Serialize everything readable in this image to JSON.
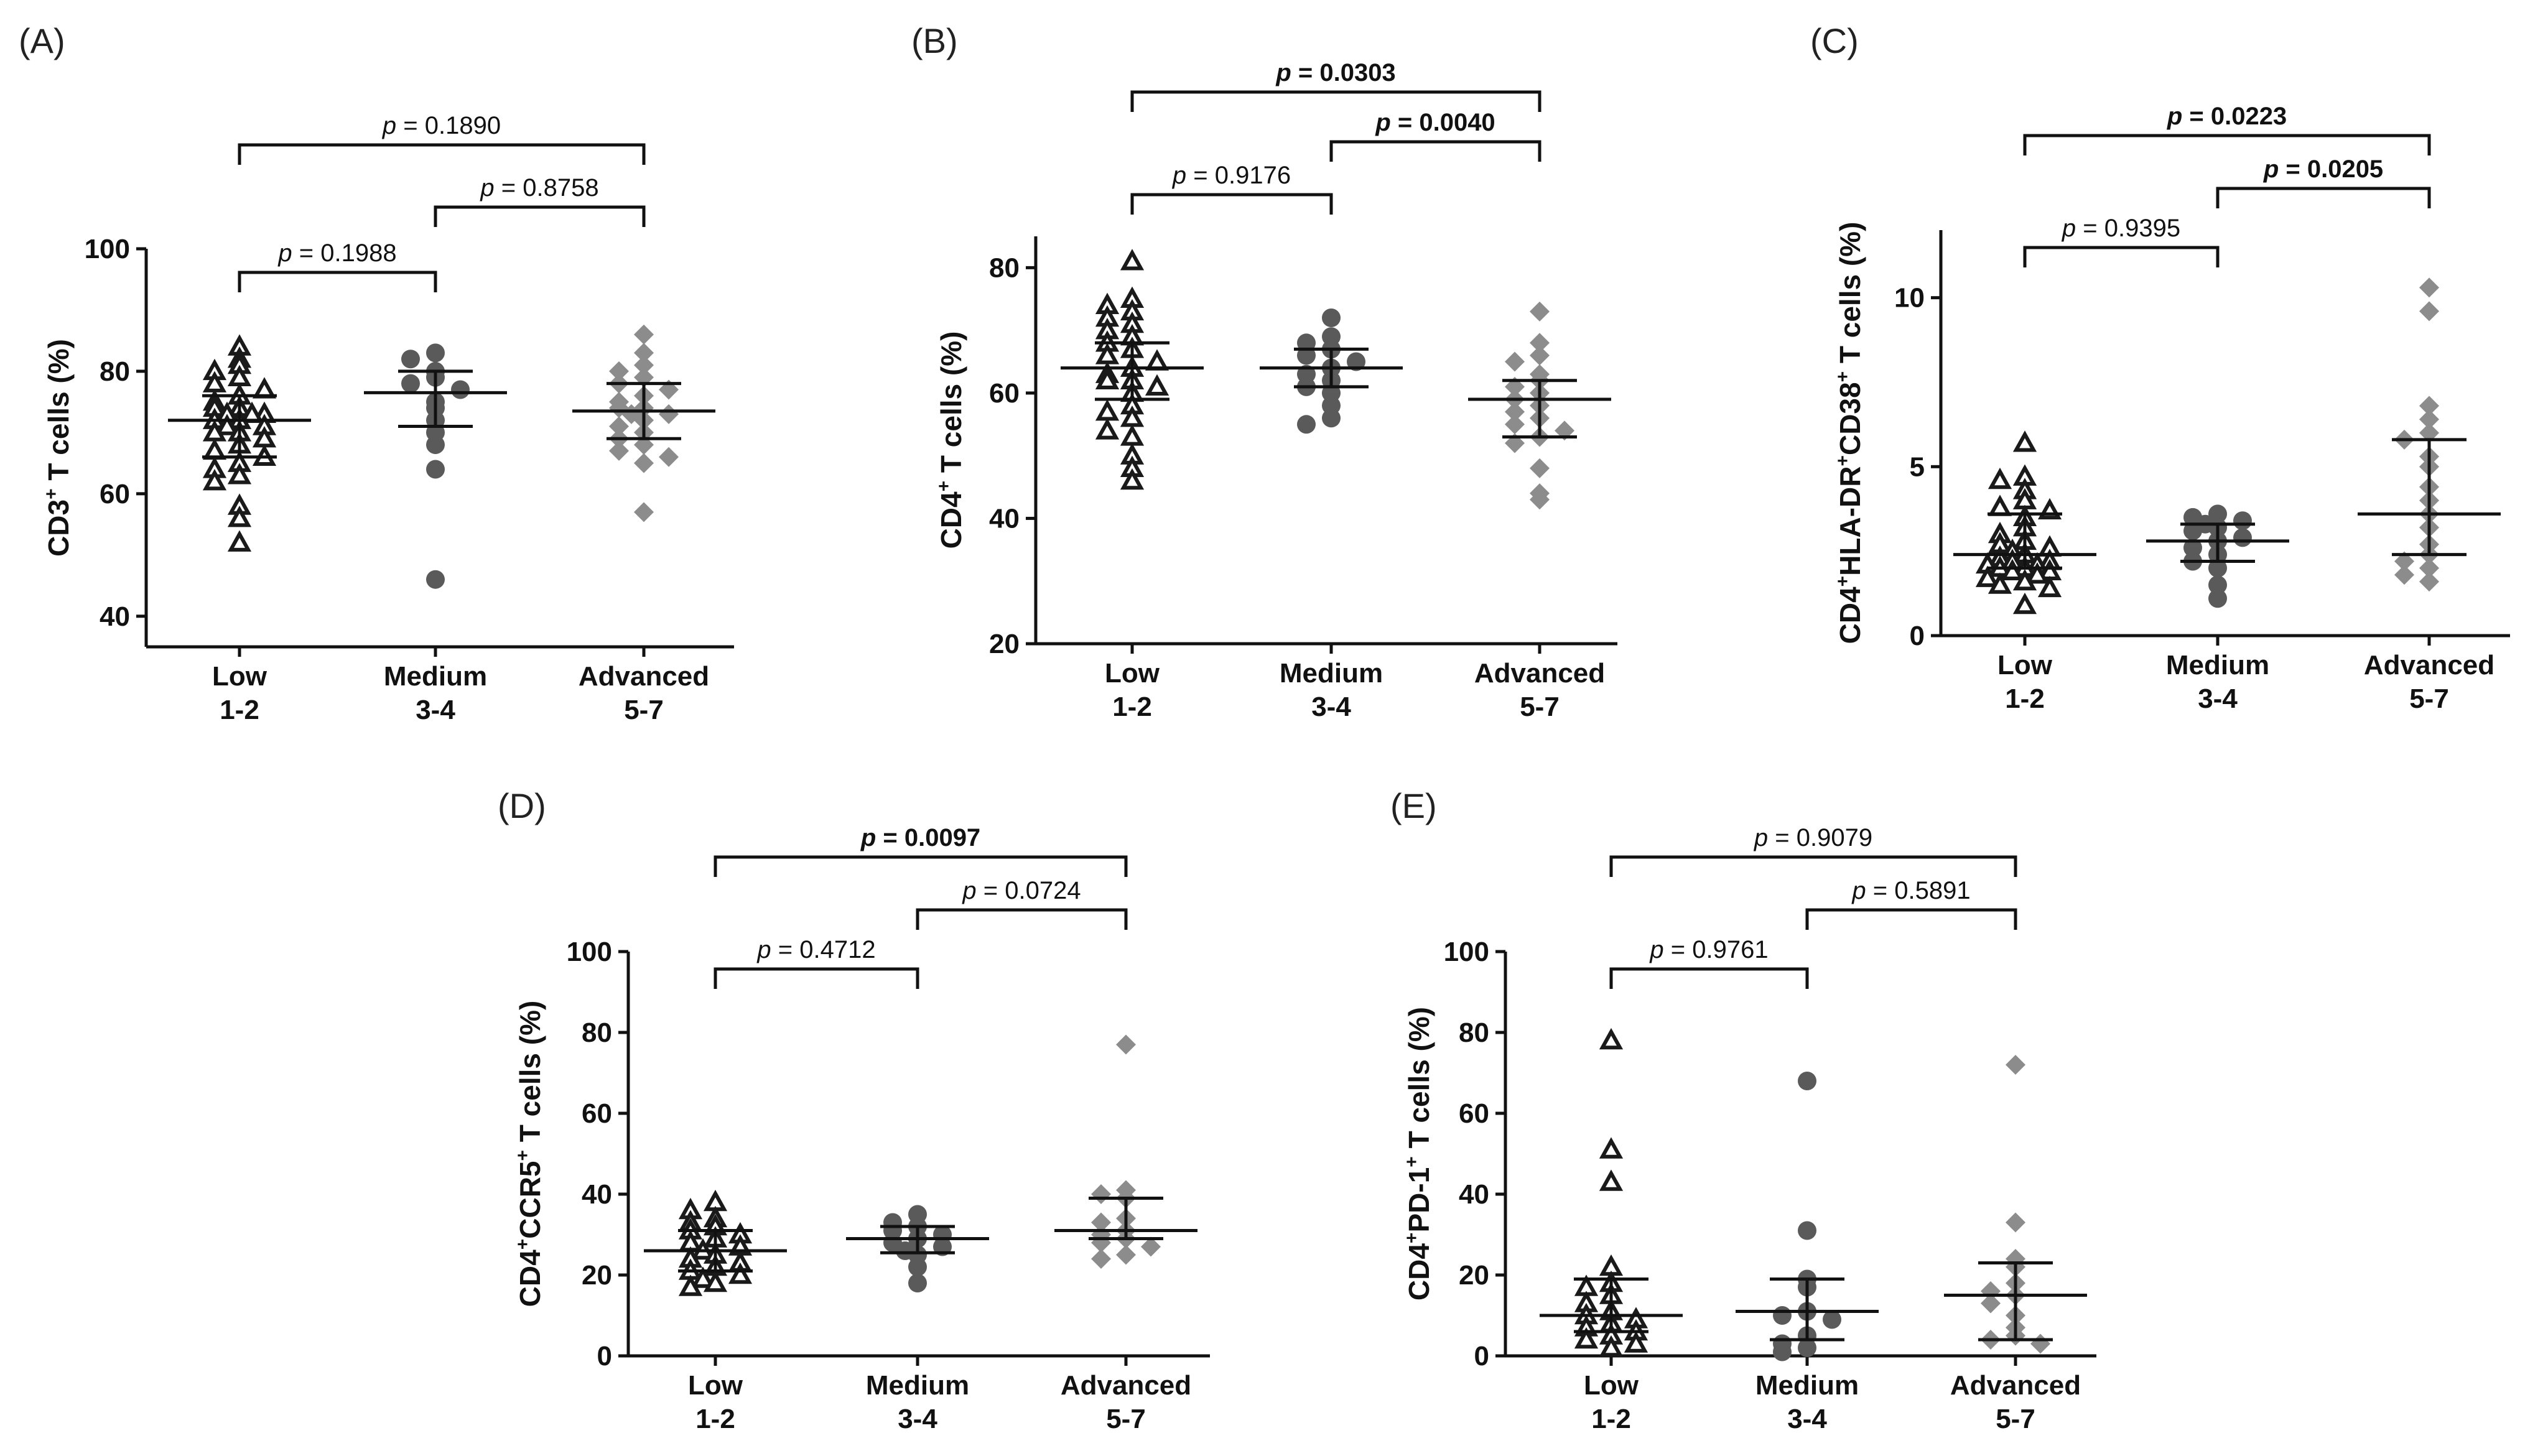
{
  "chart_data": [
    {
      "type": "scatter",
      "panel_label": "(A)",
      "ylabel": {
        "pre": "CD3",
        "sup1": "+",
        "mid": "",
        "sup2": "",
        "post": " T cells (%)"
      },
      "ylim": [
        35,
        100
      ],
      "yticks": [
        40,
        60,
        80,
        100
      ],
      "categories": [
        {
          "line1": "Low",
          "line2": "1-2"
        },
        {
          "line1": "Medium",
          "line2": "3-4"
        },
        {
          "line1": "Advanced",
          "line2": "5-7"
        }
      ],
      "groups": [
        {
          "marker": "triangle",
          "color": "#1a1a1a",
          "median": 72,
          "q1": 66,
          "q3": 76,
          "values": [
            84,
            82,
            81,
            80,
            79,
            78,
            77,
            76,
            75,
            74,
            74,
            73,
            73,
            73,
            72,
            72,
            71,
            71,
            70,
            70,
            69,
            68,
            67,
            66,
            65,
            64,
            63,
            62,
            58,
            56,
            52
          ]
        },
        {
          "marker": "circle",
          "color": "#5a5a5a",
          "median": 76.5,
          "q1": 71,
          "q3": 80,
          "values": [
            83,
            82,
            80,
            79,
            78,
            77,
            75,
            74,
            72,
            70,
            68,
            64,
            46
          ]
        },
        {
          "marker": "diamond",
          "color": "#8c8c8c",
          "median": 73.5,
          "q1": 69,
          "q3": 78,
          "values": [
            86,
            83,
            81,
            80,
            79,
            78,
            77,
            76,
            75,
            74,
            74,
            73,
            73,
            72,
            71,
            70,
            69,
            68,
            67,
            66,
            65,
            57
          ]
        }
      ],
      "comparisons": [
        {
          "from": 0,
          "to": 1,
          "p": "0.1988",
          "bold": false
        },
        {
          "from": 1,
          "to": 2,
          "p": "0.8758",
          "bold": false
        },
        {
          "from": 0,
          "to": 2,
          "p": "0.1890",
          "bold": false
        }
      ]
    },
    {
      "type": "scatter",
      "panel_label": "(B)",
      "ylabel": {
        "pre": "CD4",
        "sup1": "+",
        "mid": "",
        "sup2": "",
        "post": " T cells (%)"
      },
      "ylim": [
        20,
        85
      ],
      "yticks": [
        20,
        40,
        60,
        80
      ],
      "categories": [
        {
          "line1": "Low",
          "line2": "1-2"
        },
        {
          "line1": "Medium",
          "line2": "3-4"
        },
        {
          "line1": "Advanced",
          "line2": "5-7"
        }
      ],
      "groups": [
        {
          "marker": "triangle",
          "color": "#1a1a1a",
          "median": 64,
          "q1": 59,
          "q3": 68,
          "values": [
            81,
            75,
            74,
            73,
            72,
            71,
            70,
            69,
            68,
            67,
            66,
            65,
            64,
            63,
            62,
            62,
            61,
            60,
            58,
            57,
            56,
            54,
            53,
            50,
            48,
            46
          ]
        },
        {
          "marker": "circle",
          "color": "#5a5a5a",
          "median": 64,
          "q1": 61,
          "q3": 67,
          "values": [
            72,
            69,
            68,
            67,
            66,
            65,
            64,
            63,
            62,
            61,
            60,
            58,
            56,
            55
          ]
        },
        {
          "marker": "diamond",
          "color": "#8c8c8c",
          "median": 59,
          "q1": 53,
          "q3": 62,
          "values": [
            73,
            68,
            66,
            65,
            63,
            62,
            61,
            60,
            59,
            58,
            57,
            56,
            55,
            54,
            53,
            52,
            48,
            44,
            43
          ]
        }
      ],
      "comparisons": [
        {
          "from": 0,
          "to": 1,
          "p": "0.9176",
          "bold": false
        },
        {
          "from": 1,
          "to": 2,
          "p": "0.0040",
          "bold": true
        },
        {
          "from": 0,
          "to": 2,
          "p": "0.0303",
          "bold": true
        }
      ]
    },
    {
      "type": "scatter",
      "panel_label": "(C)",
      "ylabel": {
        "pre": "CD4",
        "sup1": "+",
        "mid": "HLA-DR",
        "sup2": "+",
        "mid2": "CD38",
        "sup3": "+",
        "post": " T cells (%)"
      },
      "ylim": [
        0,
        12
      ],
      "yticks": [
        0,
        5,
        10
      ],
      "categories": [
        {
          "line1": "Low",
          "line2": "1-2"
        },
        {
          "line1": "Medium",
          "line2": "3-4"
        },
        {
          "line1": "Advanced",
          "line2": "5-7"
        }
      ],
      "groups": [
        {
          "marker": "triangle",
          "color": "#1a1a1a",
          "median": 2.4,
          "q1": 2.0,
          "q3": 3.6,
          "values": [
            5.7,
            4.7,
            4.6,
            4.3,
            4.0,
            3.8,
            3.7,
            3.5,
            3.2,
            3.0,
            2.8,
            2.7,
            2.6,
            2.5,
            2.4,
            2.3,
            2.2,
            2.2,
            2.1,
            2.1,
            2.0,
            2.0,
            1.9,
            1.9,
            1.8,
            1.7,
            1.6,
            1.5,
            1.4,
            0.9
          ]
        },
        {
          "marker": "circle",
          "color": "#5a5a5a",
          "median": 2.8,
          "q1": 2.2,
          "q3": 3.3,
          "values": [
            3.6,
            3.5,
            3.4,
            3.3,
            3.2,
            3.1,
            2.9,
            2.8,
            2.6,
            2.4,
            2.2,
            2.0,
            1.5,
            1.1
          ]
        },
        {
          "marker": "diamond",
          "color": "#8c8c8c",
          "median": 3.6,
          "q1": 2.4,
          "q3": 5.8,
          "values": [
            10.3,
            9.6,
            6.8,
            6.4,
            6.0,
            5.8,
            5.3,
            5.0,
            4.4,
            4.0,
            3.6,
            3.2,
            2.7,
            2.4,
            2.2,
            2.0,
            1.8,
            1.6
          ]
        }
      ],
      "comparisons": [
        {
          "from": 0,
          "to": 1,
          "p": "0.9395",
          "bold": false
        },
        {
          "from": 1,
          "to": 2,
          "p": "0.0205",
          "bold": true
        },
        {
          "from": 0,
          "to": 2,
          "p": "0.0223",
          "bold": true
        }
      ]
    },
    {
      "type": "scatter",
      "panel_label": "(D)",
      "ylabel": {
        "pre": "CD4",
        "sup1": "+",
        "mid": "CCR5",
        "sup2": "+",
        "post": " T cells (%)"
      },
      "ylim": [
        0,
        100
      ],
      "yticks": [
        0,
        20,
        40,
        60,
        80,
        100
      ],
      "categories": [
        {
          "line1": "Low",
          "line2": "1-2"
        },
        {
          "line1": "Medium",
          "line2": "3-4"
        },
        {
          "line1": "Advanced",
          "line2": "5-7"
        }
      ],
      "groups": [
        {
          "marker": "triangle",
          "color": "#1a1a1a",
          "median": 26,
          "q1": 21,
          "q3": 31,
          "values": [
            38,
            36,
            34,
            33,
            32,
            31,
            30,
            29,
            28,
            27,
            26,
            25,
            24,
            23,
            22,
            21,
            20,
            19,
            18,
            17
          ]
        },
        {
          "marker": "circle",
          "color": "#5a5a5a",
          "median": 29,
          "q1": 25.5,
          "q3": 32,
          "values": [
            35,
            33,
            32,
            31,
            30,
            29,
            28,
            27,
            26,
            25,
            22,
            18
          ]
        },
        {
          "marker": "diamond",
          "color": "#8c8c8c",
          "median": 31,
          "q1": 29,
          "q3": 39,
          "values": [
            77,
            41,
            40,
            39,
            34,
            33,
            31,
            30,
            29,
            28,
            27,
            25,
            24
          ]
        }
      ],
      "comparisons": [
        {
          "from": 0,
          "to": 1,
          "p": "0.4712",
          "bold": false
        },
        {
          "from": 1,
          "to": 2,
          "p": "0.0724",
          "bold": false
        },
        {
          "from": 0,
          "to": 2,
          "p": "0.0097",
          "bold": true
        }
      ]
    },
    {
      "type": "scatter",
      "panel_label": "(E)",
      "ylabel": {
        "pre": "CD4",
        "sup1": "+",
        "mid": "PD-1",
        "sup2": "+",
        "post": " T cells (%)"
      },
      "ylim": [
        0,
        100
      ],
      "yticks": [
        0,
        20,
        40,
        60,
        80,
        100
      ],
      "categories": [
        {
          "line1": "Low",
          "line2": "1-2"
        },
        {
          "line1": "Medium",
          "line2": "3-4"
        },
        {
          "line1": "Advanced",
          "line2": "5-7"
        }
      ],
      "groups": [
        {
          "marker": "triangle",
          "color": "#1a1a1a",
          "median": 10,
          "q1": 6,
          "q3": 19,
          "values": [
            78,
            51,
            43,
            22,
            18,
            17,
            15,
            13,
            11,
            10,
            9,
            8,
            7,
            6,
            5,
            4,
            3,
            2
          ]
        },
        {
          "marker": "circle",
          "color": "#5a5a5a",
          "median": 11,
          "q1": 4,
          "q3": 19,
          "values": [
            68,
            31,
            19,
            17,
            11,
            10,
            9,
            5,
            3,
            2,
            1
          ]
        },
        {
          "marker": "diamond",
          "color": "#8c8c8c",
          "median": 15,
          "q1": 4,
          "q3": 23,
          "values": [
            72,
            33,
            24,
            22,
            18,
            16,
            15,
            13,
            10,
            7,
            5,
            4,
            3
          ]
        }
      ],
      "comparisons": [
        {
          "from": 0,
          "to": 1,
          "p": "0.9761",
          "bold": false
        },
        {
          "from": 1,
          "to": 2,
          "p": "0.5891",
          "bold": false
        },
        {
          "from": 0,
          "to": 2,
          "p": "0.9079",
          "bold": false
        }
      ]
    }
  ]
}
